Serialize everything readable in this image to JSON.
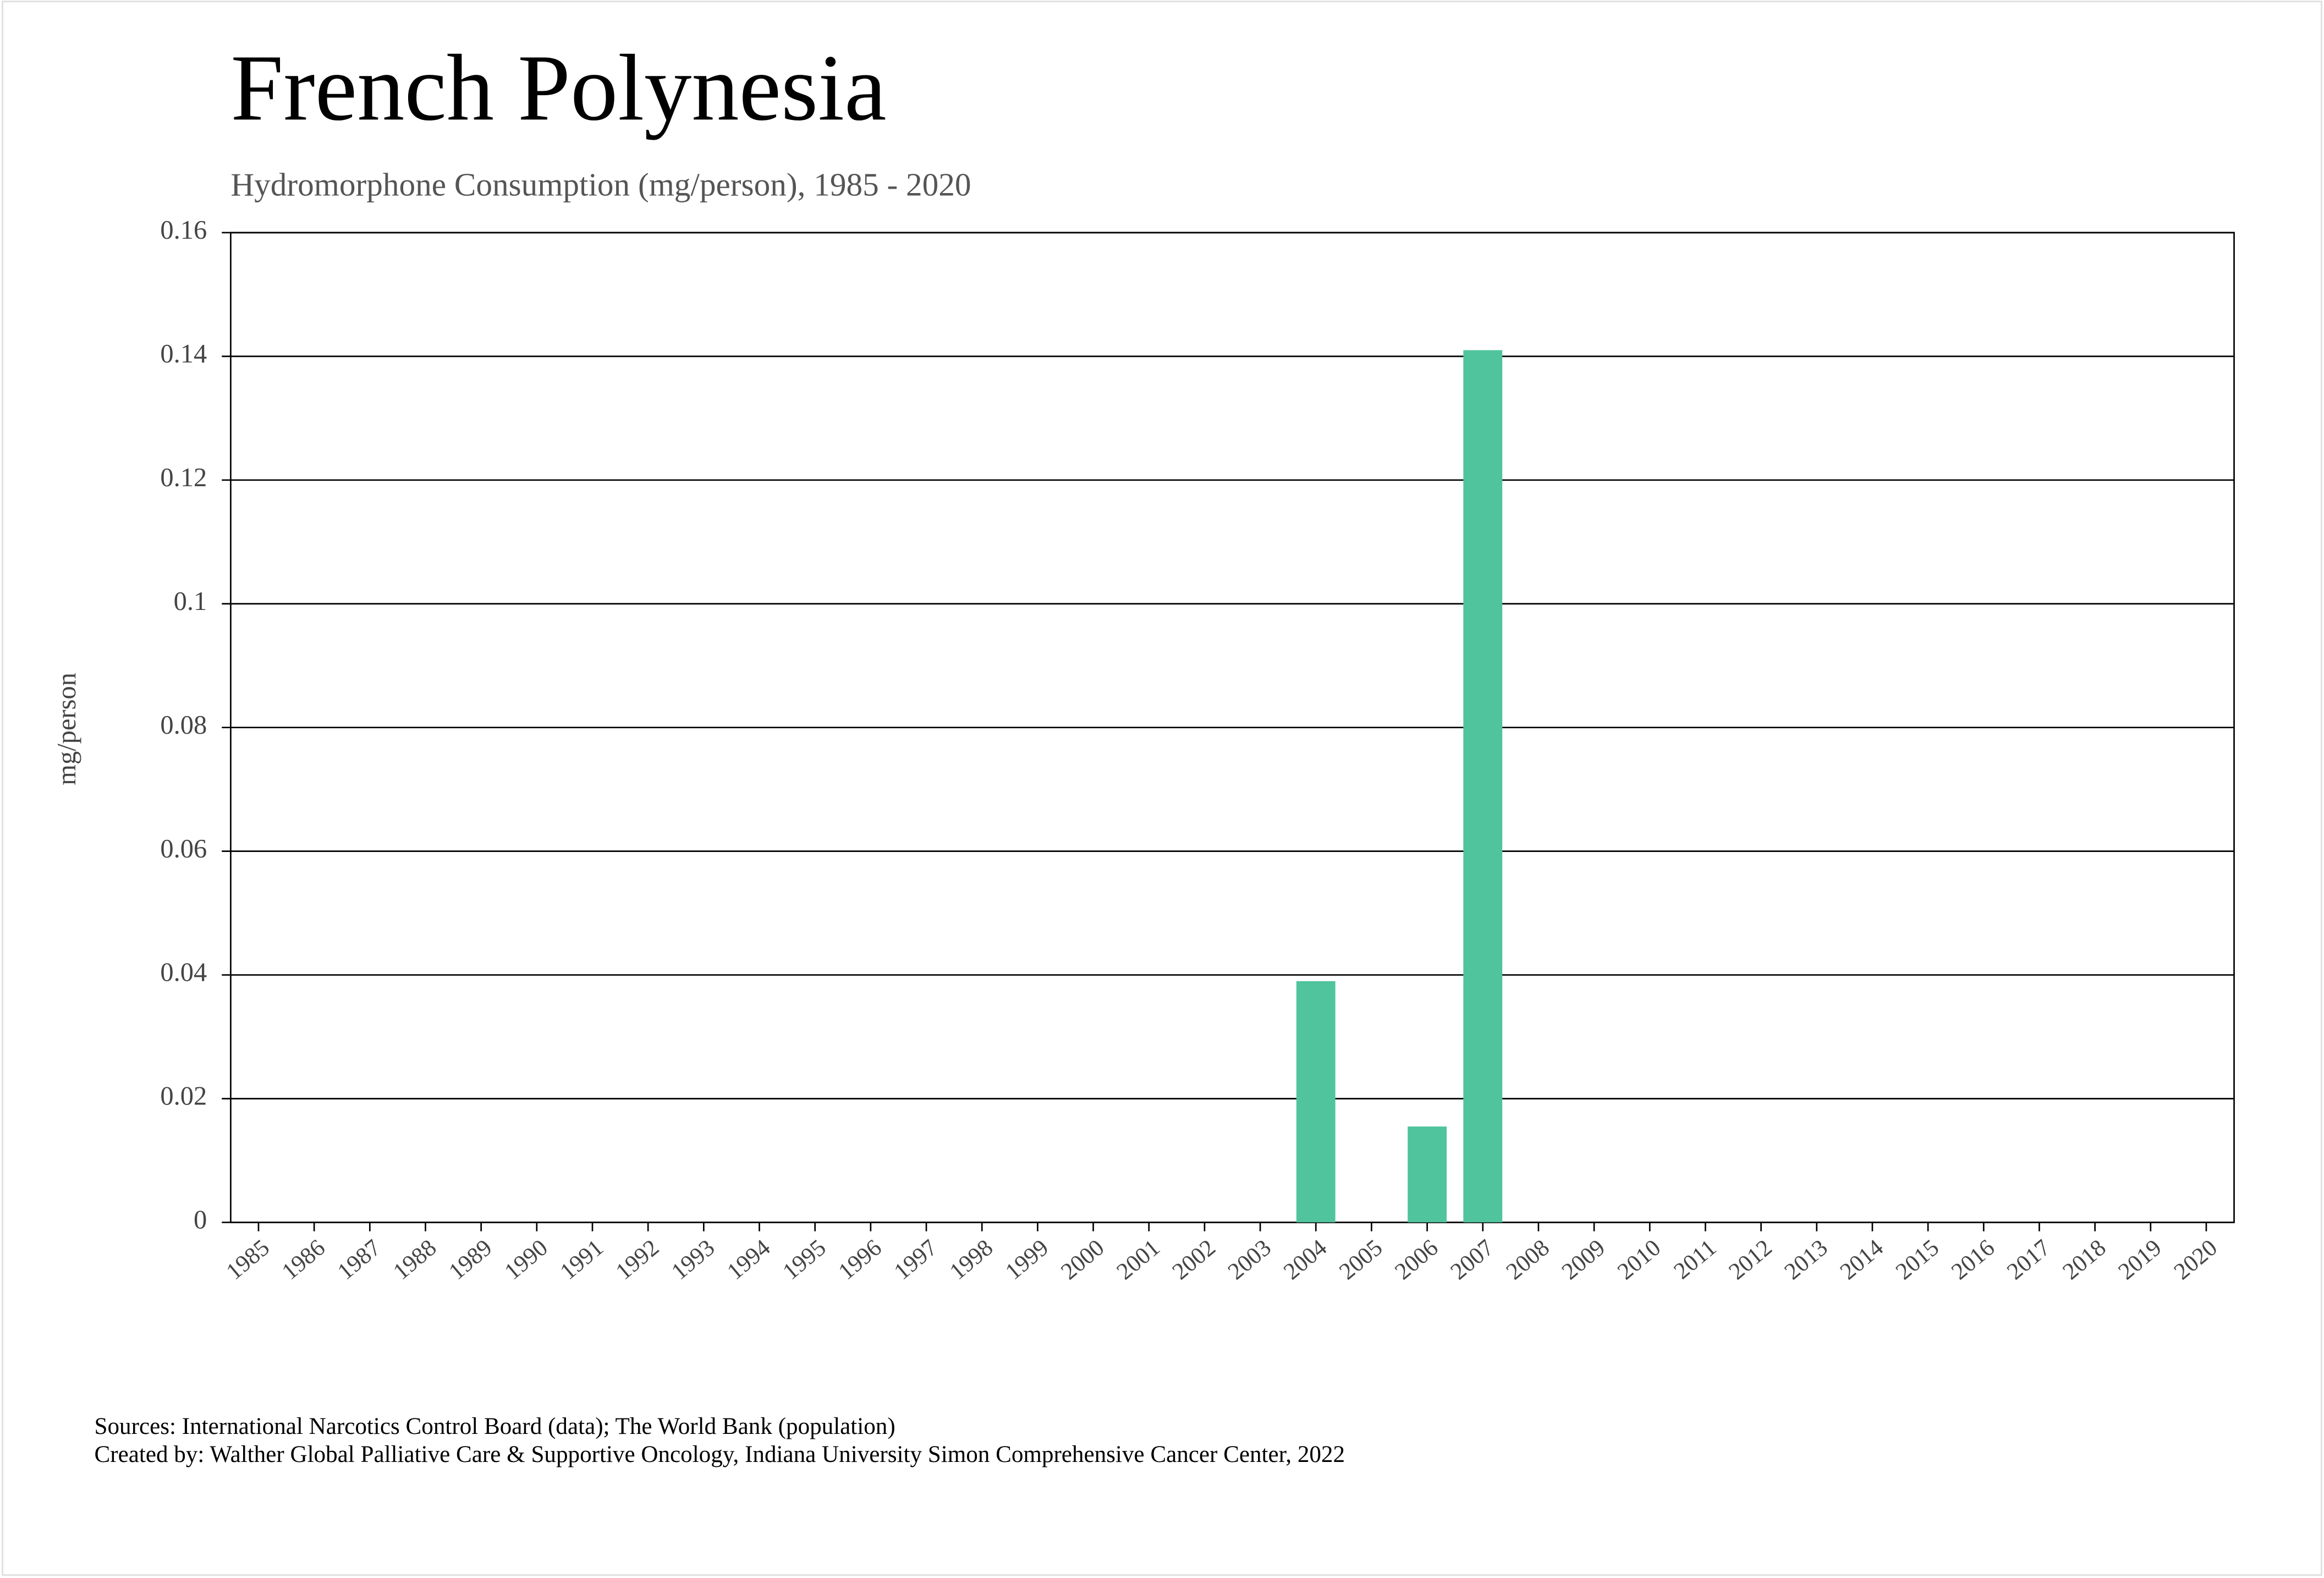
{
  "chart_data": {
    "type": "bar",
    "title": "French Polynesia",
    "subtitle": "Hydromorphone Consumption (mg/person), 1985 - 2020",
    "y_label": "mg/person",
    "categories": [
      "1985",
      "1986",
      "1987",
      "1988",
      "1989",
      "1990",
      "1991",
      "1992",
      "1993",
      "1994",
      "1995",
      "1996",
      "1997",
      "1998",
      "1999",
      "2000",
      "2001",
      "2002",
      "2003",
      "2004",
      "2005",
      "2006",
      "2007",
      "2008",
      "2009",
      "2010",
      "2011",
      "2012",
      "2013",
      "2014",
      "2015",
      "2016",
      "2017",
      "2018",
      "2019",
      "2020"
    ],
    "values": [
      null,
      null,
      null,
      null,
      null,
      null,
      null,
      null,
      null,
      null,
      null,
      null,
      null,
      null,
      null,
      null,
      null,
      null,
      null,
      0.039,
      null,
      0.0155,
      0.141,
      null,
      null,
      null,
      null,
      null,
      null,
      null,
      null,
      null,
      null,
      null,
      null,
      null
    ],
    "color": "#50c49d",
    "ylim": [
      0,
      0.16
    ],
    "yticks": [
      0,
      0.02,
      0.04,
      0.06,
      0.08,
      0.1,
      0.12,
      0.14,
      0.16
    ],
    "grid": true,
    "footer": [
      "Sources: International Narcotics Control Board (data); The World Bank (population)",
      "Created by: Walther Global Palliative Care & Supportive Oncology, Indiana University Simon Comprehensive Cancer Center, 2022"
    ]
  }
}
